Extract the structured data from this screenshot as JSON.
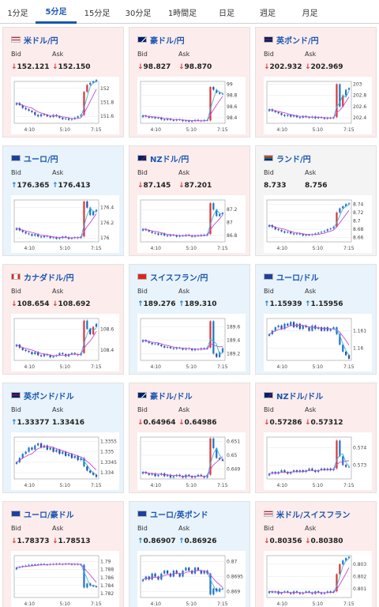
{
  "tabs": [
    {
      "label": "1分足",
      "active": false
    },
    {
      "label": "5分足",
      "active": true
    },
    {
      "label": "15分足",
      "active": false
    },
    {
      "label": "30分足",
      "active": false
    },
    {
      "label": "1時間足",
      "active": false
    },
    {
      "label": "日足",
      "active": false
    },
    {
      "label": "週足",
      "active": false
    },
    {
      "label": "月足",
      "active": false
    }
  ],
  "labels": {
    "bid": "Bid",
    "ask": "Ask"
  },
  "colors": {
    "up": "#2277c8",
    "down": "#d63a3a",
    "ma": "#c44bd8",
    "ma2": "#3fb1e0"
  },
  "pairs": [
    {
      "name": "米ドル/円",
      "flag": "us-jp-flag",
      "bid": "152.121",
      "ask": "152.150",
      "bid_dir": "down",
      "ask_dir": "down",
      "chart_data": {
        "type": "candlestick",
        "x_ticks": [
          "4:10",
          "5:10",
          "7:15"
        ],
        "y_ticks": [
          "152",
          "151.8",
          "151.6"
        ],
        "ylim": [
          151.5,
          152.1
        ],
        "trend": [
          151.79,
          151.76,
          151.72,
          151.7,
          151.68,
          151.66,
          151.62,
          151.6,
          151.63,
          151.62,
          151.6,
          151.59,
          151.62,
          151.6,
          151.58,
          151.56,
          151.57,
          151.55,
          151.56,
          151.58,
          151.6,
          151.62,
          151.95,
          152.05,
          152.08,
          152.1,
          152.12
        ]
      }
    },
    {
      "name": "豪ドル/円",
      "flag": "au-jp-flag",
      "bid": "98.827",
      "ask": "98.870",
      "bid_dir": "down",
      "ask_dir": "down",
      "chart_data": {
        "type": "candlestick",
        "x_ticks": [
          "4:10",
          "5:10",
          "7:15"
        ],
        "y_ticks": [
          "99",
          "98.8",
          "98.6",
          "98.4"
        ],
        "ylim": [
          98.3,
          99.05
        ],
        "trend": [
          98.44,
          98.42,
          98.4,
          98.41,
          98.39,
          98.4,
          98.37,
          98.36,
          98.38,
          98.36,
          98.35,
          98.37,
          98.36,
          98.34,
          98.35,
          98.33,
          98.34,
          98.36,
          98.35,
          98.34,
          98.36,
          98.35,
          98.95,
          98.9,
          98.85,
          98.83,
          98.83
        ]
      }
    },
    {
      "name": "英ポンド/円",
      "flag": "uk-jp-flag",
      "bid": "202.932",
      "ask": "202.969",
      "bid_dir": "down",
      "ask_dir": "down",
      "chart_data": {
        "type": "candlestick",
        "x_ticks": [
          "4:10",
          "5:10",
          "7:15"
        ],
        "y_ticks": [
          "203",
          "202.8",
          "202.6",
          "202.4"
        ],
        "ylim": [
          202.3,
          203.05
        ],
        "trend": [
          202.55,
          202.52,
          202.5,
          202.48,
          202.45,
          202.43,
          202.45,
          202.42,
          202.44,
          202.41,
          202.4,
          202.43,
          202.41,
          202.4,
          202.42,
          202.39,
          202.41,
          202.4,
          202.38,
          202.4,
          202.39,
          202.41,
          203.0,
          202.6,
          202.8,
          202.9,
          202.93
        ]
      }
    },
    {
      "name": "ユーロ/円",
      "flag": "eu-jp-flag",
      "bid": "176.365",
      "ask": "176.413",
      "bid_dir": "up",
      "ask_dir": "up",
      "chart_data": {
        "type": "candlestick",
        "x_ticks": [
          "4:10",
          "5:10",
          "7:15"
        ],
        "y_ticks": [
          "176.4",
          "176.2",
          "176"
        ],
        "ylim": [
          175.95,
          176.5
        ],
        "trend": [
          176.13,
          176.1,
          176.08,
          176.06,
          176.05,
          176.03,
          176.05,
          176.02,
          176.01,
          176.03,
          176.02,
          176.0,
          176.01,
          175.99,
          176.0,
          176.02,
          176.01,
          175.99,
          176.0,
          176.01,
          176.0,
          176.02,
          176.48,
          176.4,
          176.3,
          176.35,
          176.37
        ]
      }
    },
    {
      "name": "NZドル/円",
      "flag": "nz-jp-flag",
      "bid": "87.145",
      "ask": "87.201",
      "bid_dir": "down",
      "ask_dir": "down",
      "chart_data": {
        "type": "candlestick",
        "x_ticks": [
          "4:10",
          "5:10",
          "7:15"
        ],
        "y_ticks": [
          "87.2",
          "87",
          "86.8"
        ],
        "ylim": [
          86.7,
          87.35
        ],
        "trend": [
          86.9,
          86.88,
          86.86,
          86.84,
          86.83,
          86.81,
          86.83,
          86.8,
          86.79,
          86.81,
          86.8,
          86.78,
          86.8,
          86.79,
          86.81,
          86.8,
          86.78,
          86.8,
          86.79,
          86.81,
          86.8,
          86.82,
          87.3,
          87.2,
          87.1,
          87.13,
          87.15
        ]
      }
    },
    {
      "name": "ランド/円",
      "flag": "za-jp-flag",
      "bid": "8.733",
      "ask": "8.756",
      "bid_dir": "none",
      "ask_dir": "none",
      "chart_data": {
        "type": "candlestick",
        "x_ticks": [
          "4:10",
          "5:10",
          "7:15"
        ],
        "y_ticks": [
          "8.74",
          "8.72",
          "8.7",
          "8.68",
          "8.66"
        ],
        "ylim": [
          8.65,
          8.75
        ],
        "trend": [
          8.69,
          8.685,
          8.68,
          8.678,
          8.675,
          8.672,
          8.674,
          8.67,
          8.668,
          8.67,
          8.668,
          8.665,
          8.667,
          8.666,
          8.668,
          8.67,
          8.672,
          8.674,
          8.676,
          8.68,
          8.682,
          8.686,
          8.72,
          8.73,
          8.735,
          8.74,
          8.742
        ]
      }
    },
    {
      "name": "カナダドル/円",
      "flag": "ca-jp-flag",
      "bid": "108.654",
      "ask": "108.692",
      "bid_dir": "down",
      "ask_dir": "down",
      "chart_data": {
        "type": "candlestick",
        "x_ticks": [
          "4:10",
          "5:10",
          "7:15"
        ],
        "y_ticks": [
          "108.6",
          "108.4"
        ],
        "ylim": [
          108.3,
          108.7
        ],
        "trend": [
          108.45,
          108.42,
          108.4,
          108.39,
          108.38,
          108.36,
          108.38,
          108.35,
          108.34,
          108.36,
          108.35,
          108.33,
          108.34,
          108.35,
          108.37,
          108.36,
          108.34,
          108.36,
          108.37,
          108.36,
          108.35,
          108.37,
          108.68,
          108.6,
          108.55,
          108.62,
          108.65
        ]
      }
    },
    {
      "name": "スイスフラン/円",
      "flag": "ch-jp-flag",
      "bid": "189.276",
      "ask": "189.310",
      "bid_dir": "up",
      "ask_dir": "up",
      "chart_data": {
        "type": "candlestick",
        "x_ticks": [
          "4:10",
          "5:10",
          "7:15"
        ],
        "y_ticks": [
          "189.6",
          "189.4",
          "189.2"
        ],
        "ylim": [
          189.1,
          189.72
        ],
        "trend": [
          189.4,
          189.38,
          189.36,
          189.34,
          189.35,
          189.33,
          189.31,
          189.29,
          189.3,
          189.28,
          189.27,
          189.29,
          189.28,
          189.26,
          189.28,
          189.27,
          189.25,
          189.27,
          189.26,
          189.28,
          189.27,
          189.29,
          189.68,
          189.2,
          189.15,
          189.22,
          189.28
        ]
      }
    },
    {
      "name": "ユーロ/ドル",
      "flag": "eu-us-flag",
      "bid": "1.15939",
      "ask": "1.15956",
      "bid_dir": "up",
      "ask_dir": "up",
      "chart_data": {
        "type": "candlestick",
        "x_ticks": [
          "4:10",
          "5:10",
          "7:15"
        ],
        "y_ticks": [
          "1.161",
          "1.16"
        ],
        "ylim": [
          1.1593,
          1.1617
        ],
        "trend": [
          1.1608,
          1.161,
          1.1612,
          1.1613,
          1.1611,
          1.1614,
          1.1613,
          1.1615,
          1.1612,
          1.1614,
          1.1611,
          1.1613,
          1.1612,
          1.161,
          1.1613,
          1.1611,
          1.1612,
          1.161,
          1.1612,
          1.161,
          1.1611,
          1.1612,
          1.1608,
          1.1602,
          1.1598,
          1.1596,
          1.1594
        ]
      }
    },
    {
      "name": "英ポンド/ドル",
      "flag": "uk-us-flag",
      "bid": "1.33377",
      "ask": "1.33416",
      "bid_dir": "up",
      "ask_dir": "none",
      "chart_data": {
        "type": "candlestick",
        "x_ticks": [
          "4:10",
          "5:10",
          "7:15"
        ],
        "y_ticks": [
          "1.3355",
          "1.335",
          "1.3345",
          "1.334"
        ],
        "ylim": [
          1.3337,
          1.3357
        ],
        "trend": [
          1.3345,
          1.3347,
          1.3349,
          1.335,
          1.3352,
          1.3351,
          1.3353,
          1.3354,
          1.3352,
          1.3353,
          1.3351,
          1.3352,
          1.335,
          1.3351,
          1.3349,
          1.335,
          1.3348,
          1.3349,
          1.3347,
          1.3348,
          1.3346,
          1.3347,
          1.3343,
          1.3341,
          1.334,
          1.3339,
          1.3338
        ]
      }
    },
    {
      "name": "豪ドル/ドル",
      "flag": "au-us-flag",
      "bid": "0.64964",
      "ask": "0.64986",
      "bid_dir": "down",
      "ask_dir": "down",
      "chart_data": {
        "type": "candlestick",
        "x_ticks": [
          "4:10",
          "5:10",
          "7:15"
        ],
        "y_ticks": [
          "0.651",
          "0.65",
          "0.649"
        ],
        "ylim": [
          0.6483,
          0.6513
        ],
        "trend": [
          0.6488,
          0.6487,
          0.6486,
          0.6487,
          0.6485,
          0.6486,
          0.6487,
          0.6485,
          0.6486,
          0.6484,
          0.6485,
          0.6486,
          0.6485,
          0.6484,
          0.6486,
          0.6485,
          0.6484,
          0.6485,
          0.6486,
          0.6485,
          0.6484,
          0.6486,
          0.6512,
          0.6505,
          0.6498,
          0.6497,
          0.6496
        ]
      }
    },
    {
      "name": "NZドル/ドル",
      "flag": "nz-us-flag",
      "bid": "0.57286",
      "ask": "0.57312",
      "bid_dir": "down",
      "ask_dir": "down",
      "chart_data": {
        "type": "candlestick",
        "x_ticks": [
          "4:10",
          "5:10",
          "7:15"
        ],
        "y_ticks": [
          "0.574",
          "0.573"
        ],
        "ylim": [
          0.5722,
          0.5746
        ],
        "trend": [
          0.5725,
          0.5726,
          0.5725,
          0.5726,
          0.5727,
          0.5726,
          0.5725,
          0.5726,
          0.5727,
          0.5726,
          0.5727,
          0.5726,
          0.5727,
          0.5728,
          0.5727,
          0.5726,
          0.5727,
          0.5728,
          0.5727,
          0.5728,
          0.5727,
          0.5728,
          0.5744,
          0.5735,
          0.573,
          0.5729,
          0.5729
        ]
      }
    },
    {
      "name": "ユーロ/豪ドル",
      "flag": "eu-au-flag",
      "bid": "1.78373",
      "ask": "1.78513",
      "bid_dir": "down",
      "ask_dir": "down",
      "chart_data": {
        "type": "candlestick",
        "x_ticks": [
          "4:10",
          "5:10",
          "7:15"
        ],
        "y_ticks": [
          "1.79",
          "1.788",
          "1.786",
          "1.784",
          "1.782"
        ],
        "ylim": [
          1.781,
          1.7915
        ],
        "trend": [
          1.7885,
          1.7887,
          1.7889,
          1.789,
          1.7892,
          1.7891,
          1.7893,
          1.7892,
          1.7894,
          1.7893,
          1.7892,
          1.7894,
          1.7893,
          1.7895,
          1.7894,
          1.7893,
          1.7895,
          1.7894,
          1.7893,
          1.7894,
          1.7893,
          1.7892,
          1.7835,
          1.7845,
          1.784,
          1.7838,
          1.7837
        ]
      }
    },
    {
      "name": "ユーロ/英ポンド",
      "flag": "eu-uk-flag",
      "bid": "0.86907",
      "ask": "0.86926",
      "bid_dir": "up",
      "ask_dir": "up",
      "chart_data": {
        "type": "candlestick",
        "x_ticks": [
          "4:10",
          "5:10",
          "7:15"
        ],
        "y_ticks": [
          "0.87",
          "0.8695",
          "0.869"
        ],
        "ylim": [
          0.8688,
          0.8702
        ],
        "trend": [
          0.8694,
          0.8695,
          0.8694,
          0.8696,
          0.8695,
          0.8694,
          0.8696,
          0.8697,
          0.8696,
          0.8695,
          0.8697,
          0.8696,
          0.8695,
          0.8697,
          0.8698,
          0.8697,
          0.8696,
          0.8698,
          0.8697,
          0.8696,
          0.8697,
          0.8696,
          0.8689,
          0.8691,
          0.869,
          0.8691,
          0.8691
        ]
      }
    },
    {
      "name": "米ドル/スイスフラン",
      "flag": "us-ch-flag",
      "bid": "0.80356",
      "ask": "0.80380",
      "bid_dir": "down",
      "ask_dir": "down",
      "chart_data": {
        "type": "candlestick",
        "x_ticks": [
          "4:10",
          "5:10",
          "7:15"
        ],
        "y_ticks": [
          "0.803",
          "0.802",
          "0.801"
        ],
        "ylim": [
          0.8003,
          0.8037
        ],
        "trend": [
          0.8008,
          0.8007,
          0.8008,
          0.8006,
          0.8007,
          0.8008,
          0.8007,
          0.8006,
          0.8008,
          0.8007,
          0.8006,
          0.8007,
          0.8008,
          0.8007,
          0.8006,
          0.8008,
          0.8007,
          0.8006,
          0.8007,
          0.8008,
          0.8007,
          0.8008,
          0.8022,
          0.803,
          0.8033,
          0.8035,
          0.8036
        ]
      }
    }
  ]
}
